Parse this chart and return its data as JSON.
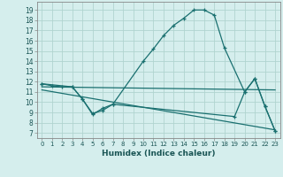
{
  "xlabel": "Humidex (Indice chaleur)",
  "background_color": "#d5eeed",
  "grid_color": "#b0d4d0",
  "line_color": "#1a7070",
  "xlim": [
    -0.5,
    23.5
  ],
  "ylim": [
    6.5,
    19.8
  ],
  "xticks": [
    0,
    1,
    2,
    3,
    4,
    5,
    6,
    7,
    8,
    9,
    10,
    11,
    12,
    13,
    14,
    15,
    16,
    17,
    18,
    19,
    20,
    21,
    22,
    23
  ],
  "yticks": [
    7,
    8,
    9,
    10,
    11,
    12,
    13,
    14,
    15,
    16,
    17,
    18,
    19
  ],
  "line1_x": [
    0,
    1,
    2,
    3,
    4,
    5,
    6,
    7,
    10,
    11,
    12,
    13,
    14,
    15,
    16,
    17,
    18,
    20,
    21,
    22,
    23
  ],
  "line1_y": [
    11.8,
    11.6,
    11.5,
    11.5,
    10.3,
    8.8,
    9.4,
    9.8,
    14.0,
    15.2,
    16.5,
    17.5,
    18.2,
    19.0,
    19.0,
    18.5,
    15.3,
    11.0,
    12.3,
    9.6,
    7.2
  ],
  "line2_x": [
    0,
    3,
    4,
    5,
    6,
    7,
    19,
    20,
    21,
    22,
    23
  ],
  "line2_y": [
    11.8,
    11.5,
    10.3,
    8.9,
    9.2,
    9.8,
    8.6,
    11.0,
    12.3,
    9.6,
    7.2
  ],
  "line3_x": [
    0,
    23
  ],
  "line3_y": [
    11.5,
    11.2
  ],
  "line4_x": [
    0,
    23
  ],
  "line4_y": [
    11.2,
    7.3
  ]
}
